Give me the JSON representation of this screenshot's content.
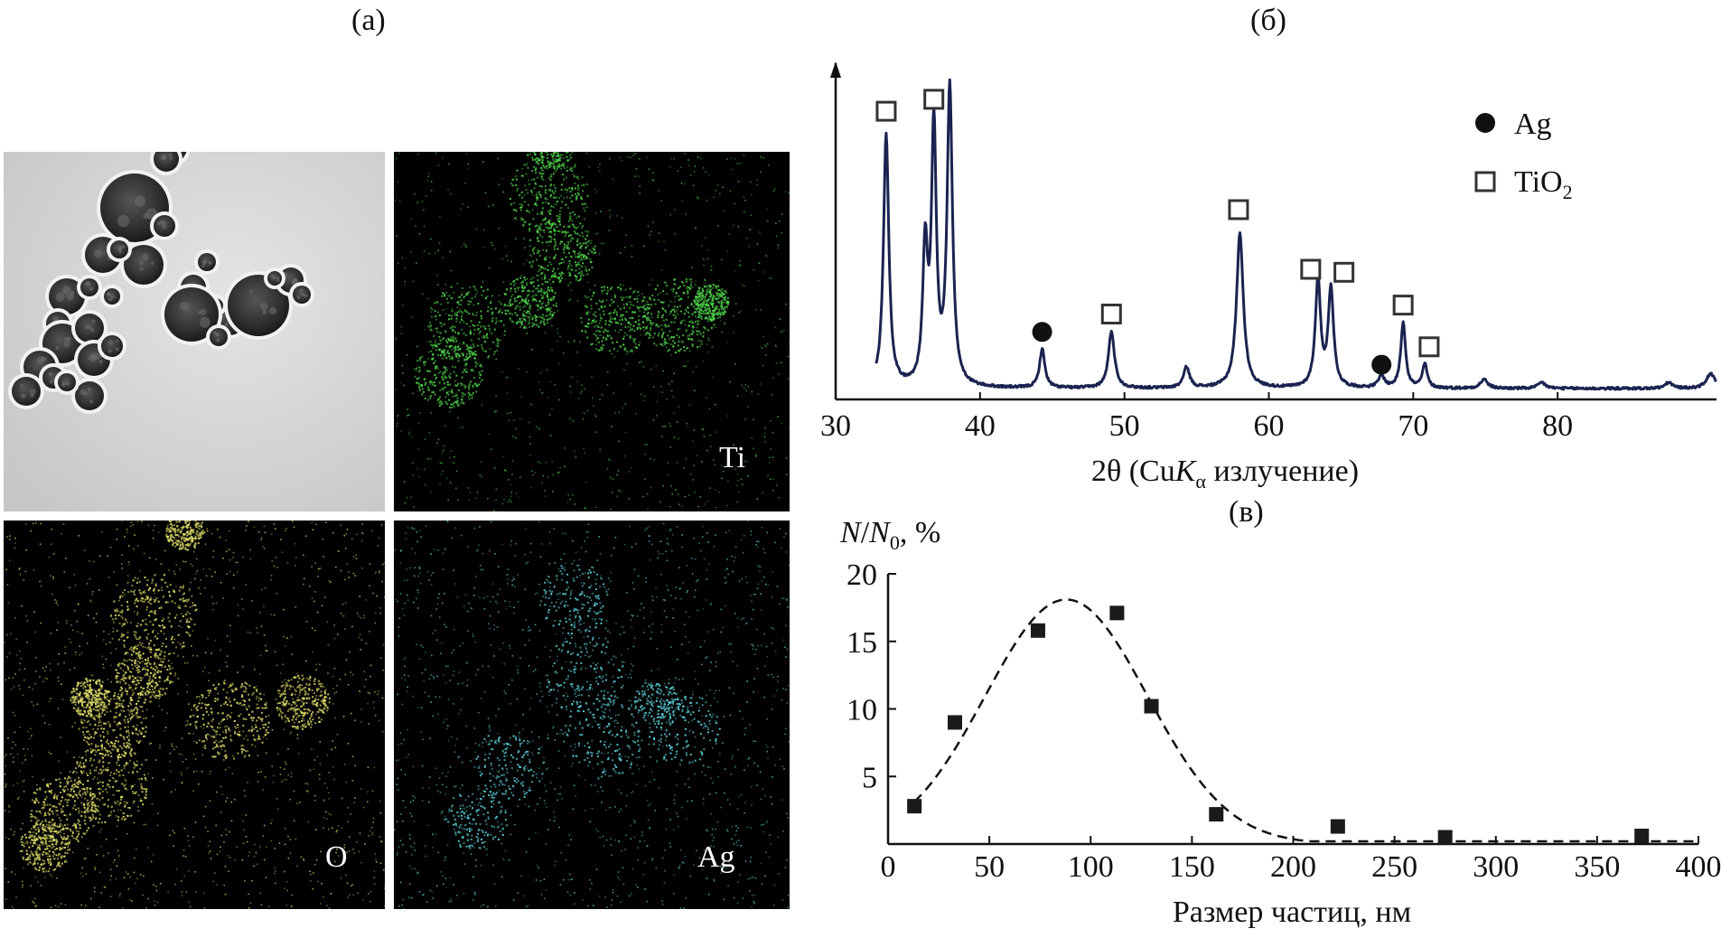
{
  "panel_labels": {
    "a": "(а)",
    "b": "(б)",
    "c": "(в)"
  },
  "micrographs": {
    "tem": {
      "label": ""
    },
    "ti": {
      "label": "Ti",
      "color": "#4fd24a"
    },
    "o": {
      "label": "O",
      "color": "#e2e06a"
    },
    "ag": {
      "label": "Ag",
      "color": "#5fd6e0"
    }
  },
  "chart_data": [
    {
      "type": "line",
      "panel": "(б)",
      "xlabel_parts": {
        "prefix": "2θ (Cu",
        "k": "K",
        "alpha": "α",
        "suffix": " излучение)"
      },
      "xlim": [
        30,
        91
      ],
      "x_ticks": [
        30,
        40,
        50,
        60,
        70,
        80
      ],
      "legend": [
        {
          "marker": "filled-circle",
          "label": "Ag"
        },
        {
          "marker": "open-square",
          "label_main": "TiO",
          "label_sub": "2"
        }
      ],
      "legend_position": "top-right",
      "series": [
        {
          "peaks": [
            {
              "x": 33.5,
              "h": 0.85,
              "w": 0.22,
              "phase": "TiO2"
            },
            {
              "x": 36.2,
              "h": 0.45,
              "w": 0.2,
              "phase": ""
            },
            {
              "x": 36.8,
              "h": 0.86,
              "w": 0.2,
              "phase": "TiO2"
            },
            {
              "x": 37.9,
              "h": 1.0,
              "w": 0.22,
              "phase": "TiO2"
            },
            {
              "x": 44.3,
              "h": 0.13,
              "w": 0.22,
              "phase": "Ag"
            },
            {
              "x": 49.1,
              "h": 0.19,
              "w": 0.25,
              "phase": "TiO2"
            },
            {
              "x": 54.3,
              "h": 0.07,
              "w": 0.25,
              "phase": ""
            },
            {
              "x": 58.0,
              "h": 0.52,
              "w": 0.28,
              "phase": "TiO2"
            },
            {
              "x": 63.4,
              "h": 0.36,
              "w": 0.22,
              "phase": "TiO2"
            },
            {
              "x": 64.3,
              "h": 0.33,
              "w": 0.22,
              "phase": "TiO2"
            },
            {
              "x": 67.8,
              "h": 0.04,
              "w": 0.25,
              "phase": "Ag"
            },
            {
              "x": 69.3,
              "h": 0.22,
              "w": 0.2,
              "phase": "TiO2"
            },
            {
              "x": 70.8,
              "h": 0.08,
              "w": 0.2,
              "phase": "TiO2"
            },
            {
              "x": 74.9,
              "h": 0.03,
              "w": 0.3,
              "phase": ""
            },
            {
              "x": 78.9,
              "h": 0.02,
              "w": 0.3,
              "phase": ""
            },
            {
              "x": 87.7,
              "h": 0.02,
              "w": 0.3,
              "phase": ""
            },
            {
              "x": 90.6,
              "h": 0.05,
              "w": 0.35,
              "phase": ""
            }
          ]
        }
      ],
      "markers": [
        {
          "x": 33.5,
          "level": 0.93,
          "type": "open-square"
        },
        {
          "x": 36.8,
          "level": 0.97,
          "type": "open-square"
        },
        {
          "x": 38.0,
          "level": 1.17,
          "type": "open-square"
        },
        {
          "x": 44.3,
          "level": 0.19,
          "type": "filled-circle"
        },
        {
          "x": 49.1,
          "level": 0.25,
          "type": "open-square"
        },
        {
          "x": 57.9,
          "level": 0.6,
          "type": "open-square"
        },
        {
          "x": 62.9,
          "level": 0.4,
          "type": "open-square"
        },
        {
          "x": 65.2,
          "level": 0.39,
          "type": "open-square"
        },
        {
          "x": 67.8,
          "level": 0.08,
          "type": "filled-circle"
        },
        {
          "x": 69.3,
          "level": 0.28,
          "type": "open-square"
        },
        {
          "x": 71.1,
          "level": 0.14,
          "type": "open-square"
        }
      ]
    },
    {
      "type": "scatter",
      "panel": "(в)",
      "ylabel_parts": {
        "n": "N",
        "slash": "/",
        "n0": "N",
        "sub": "0",
        "unit": ", %"
      },
      "xlabel": "Размер частиц, нм",
      "xlim": [
        0,
        400
      ],
      "ylim": [
        0,
        20
      ],
      "x_ticks": [
        0,
        50,
        100,
        150,
        200,
        250,
        300,
        350,
        400
      ],
      "y_ticks": [
        5,
        10,
        15,
        20
      ],
      "series": [
        {
          "name": "",
          "marker": "filled-square",
          "points": [
            {
              "x": 13,
              "y": 2.8
            },
            {
              "x": 33,
              "y": 9.0
            },
            {
              "x": 74,
              "y": 15.8
            },
            {
              "x": 113,
              "y": 17.1
            },
            {
              "x": 130,
              "y": 10.2
            },
            {
              "x": 162,
              "y": 2.2
            },
            {
              "x": 222,
              "y": 1.3
            },
            {
              "x": 275,
              "y": 0.5
            },
            {
              "x": 372,
              "y": 0.6
            }
          ]
        }
      ],
      "fit": {
        "style": "dashed",
        "amplitude": 18.1,
        "center": 88,
        "sigma": 40
      }
    }
  ]
}
